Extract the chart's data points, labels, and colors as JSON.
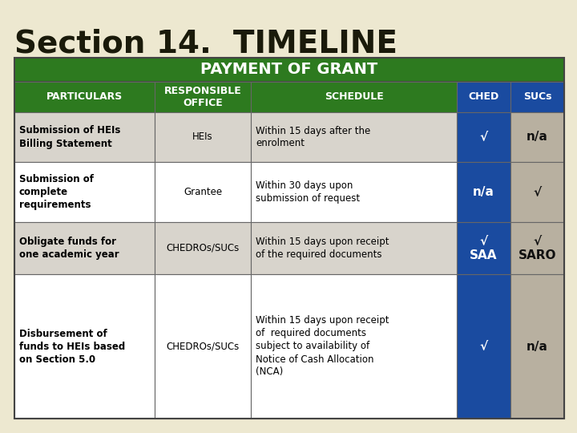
{
  "title": "Section 14.  TIMELINE",
  "table_title": "PAYMENT OF GRANT",
  "bg_color": "#EDE8D0",
  "green_color": "#2D7A1F",
  "blue_color": "#1A4BA0",
  "sucs_gray": "#B8B0A0",
  "row_gray": "#D8D4CC",
  "white": "#FFFFFF",
  "columns": [
    "PARTICULARS",
    "RESPONSIBLE\nOFFICE",
    "SCHEDULE",
    "CHED",
    "SUCs"
  ],
  "rows": [
    {
      "particulars": "Submission of HEIs\nBilling Statement",
      "office": "HEIs",
      "schedule": "Within 15 days after the\nenrolment",
      "ched": "√",
      "sucs": "n/a",
      "row_bg": "#D8D4CC"
    },
    {
      "particulars": "Submission of\ncomplete\nrequirements",
      "office": "Grantee",
      "schedule": "Within 30 days upon\nsubmission of request",
      "ched": "n/a",
      "sucs": "√",
      "row_bg": "#FFFFFF"
    },
    {
      "particulars": "Obligate funds for\none academic year",
      "office": "CHEDROs/SUCs",
      "schedule": "Within 15 days upon receipt\nof the required documents",
      "ched": "√\nSAA",
      "sucs": "√\nSARO",
      "row_bg": "#D8D4CC"
    },
    {
      "particulars": "Disbursement of\nfunds to HEIs based\non Section 5.0",
      "office": "CHEDROs/SUCs",
      "schedule": "Within 15 days upon receipt\nof  required documents\nsubject to availability of\nNotice of Cash Allocation\n(NCA)",
      "ched": "√",
      "sucs": "n/a",
      "row_bg": "#FFFFFF"
    }
  ]
}
